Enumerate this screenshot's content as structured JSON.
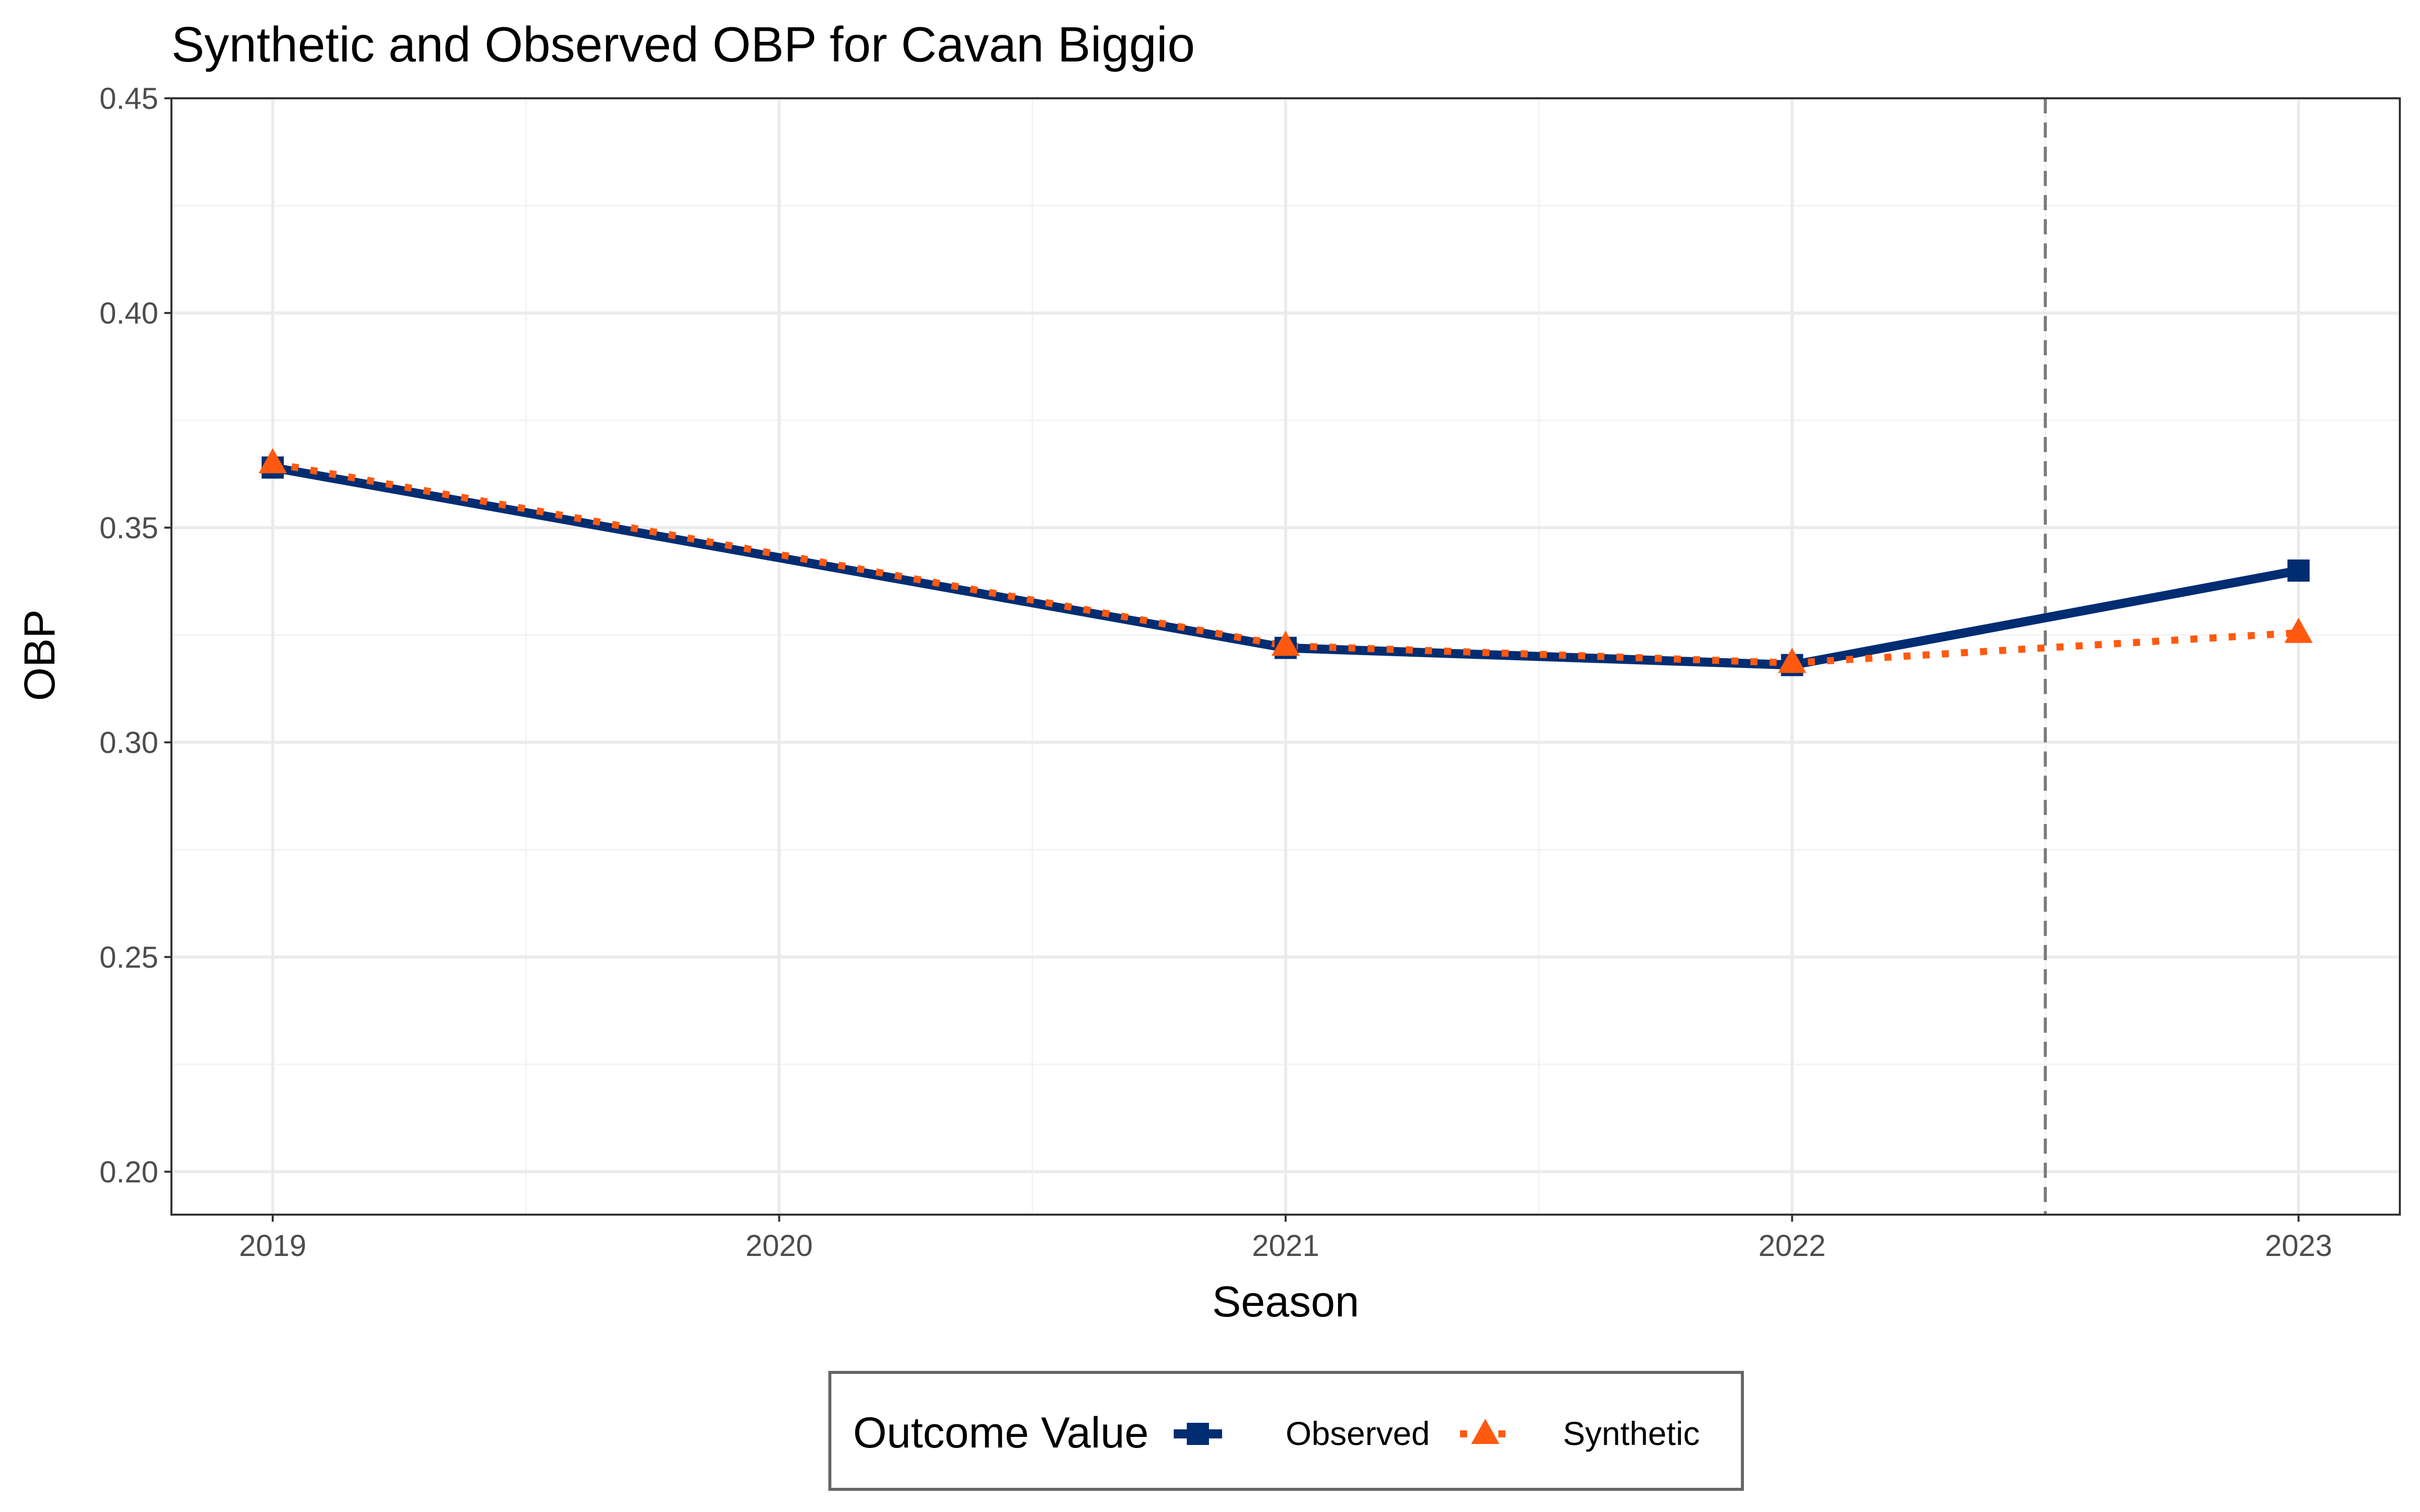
{
  "chart_data": {
    "type": "line",
    "title": "Synthetic and Observed OBP for Cavan Biggio",
    "xlabel": "Season",
    "ylabel": "OBP",
    "x": [
      2019,
      2020,
      2021,
      2022,
      2023
    ],
    "xlim": [
      2018.8,
      2023.2
    ],
    "ylim": [
      0.19,
      0.45
    ],
    "yticks": [
      0.2,
      0.25,
      0.3,
      0.35,
      0.4,
      0.45
    ],
    "ytick_labels": [
      "0.20",
      "0.25",
      "0.30",
      "0.35",
      "0.40",
      "0.45"
    ],
    "xticks": [
      2019,
      2020,
      2021,
      2022,
      2023
    ],
    "xtick_labels": [
      "2019",
      "2020",
      "2021",
      "2022",
      "2023"
    ],
    "treatment_line_x": 2022.5,
    "grid": true,
    "legend": {
      "title": "Outcome Value",
      "placement": "bottom"
    },
    "series": [
      {
        "name": "Observed",
        "color": "#002D72",
        "line": "solid",
        "marker": "square",
        "points": [
          [
            2019,
            0.364
          ],
          [
            2021,
            0.322
          ],
          [
            2022,
            0.318
          ],
          [
            2023,
            0.34
          ]
        ]
      },
      {
        "name": "Synthetic",
        "color": "#FF5910",
        "line": "dotted",
        "marker": "triangle",
        "points": [
          [
            2019,
            0.365
          ],
          [
            2021,
            0.3225
          ],
          [
            2022,
            0.3185
          ],
          [
            2023,
            0.3255
          ]
        ]
      }
    ]
  }
}
